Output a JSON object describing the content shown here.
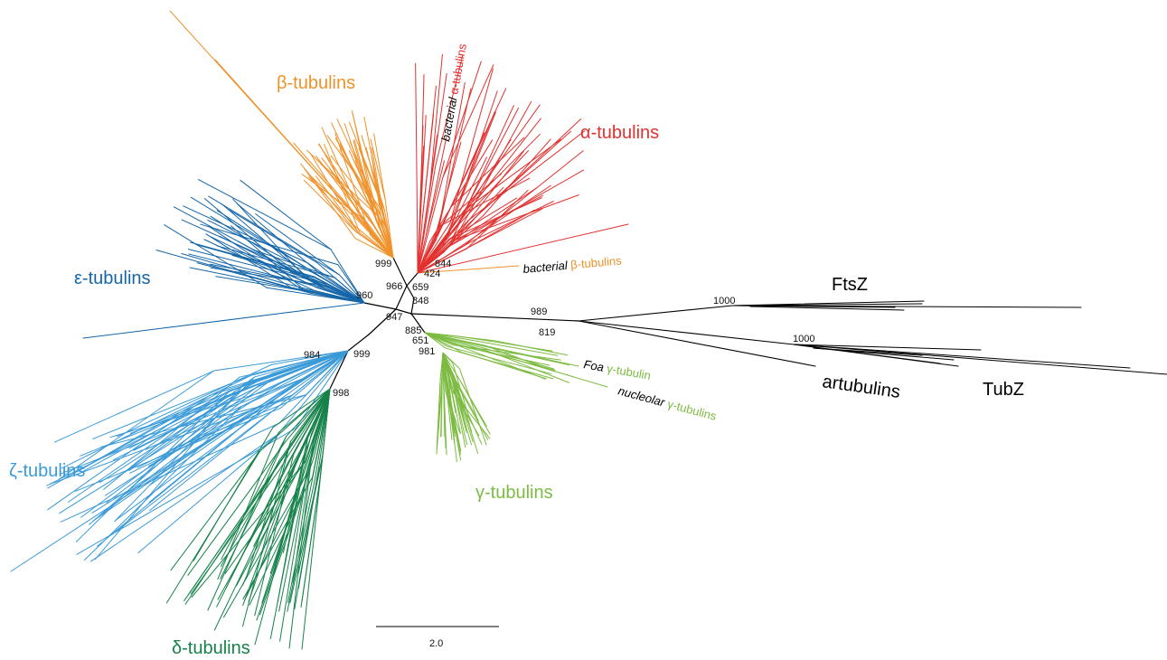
{
  "colors": {
    "alpha": "#e2312f",
    "beta": "#f0922b",
    "gamma": "#7dbb42",
    "delta": "#16824a",
    "epsilon": "#1566a8",
    "zeta": "#3a9ad8",
    "outgroup": "#000000"
  },
  "clades": {
    "beta": "β-tubulins",
    "alpha": "α-tubulins",
    "epsilon": "ε-tubulins",
    "zeta": "ζ-tubulins",
    "delta": "δ-tubulins",
    "gamma": "γ-tubulins",
    "ftsz": "FtsZ",
    "artubulins": "artubulins",
    "tubz": "TubZ"
  },
  "annotations": {
    "bacterial_alpha_italic": "bacterial",
    "bacterial_alpha_rest": " α-tubulins",
    "bacterial_beta_italic": "bacterial",
    "bacterial_beta_rest": " β-tubulins",
    "foa_italic": "Foa",
    "foa_rest": " γ-tubulin",
    "nucleolar_italic": "nucleolar",
    "nucleolar_rest": " γ-tubulins"
  },
  "bootstrap": {
    "b999a": "999",
    "b844": "844",
    "b424": "424",
    "b966": "966",
    "b659": "659",
    "b848": "848",
    "b960": "960",
    "b947": "947",
    "b885": "885",
    "b651": "651",
    "b981": "981",
    "b989": "989",
    "b819": "819",
    "b1000a": "1000",
    "b1000b": "1000",
    "b984": "984",
    "b999b": "999",
    "b998": "998"
  },
  "scale_bar": {
    "label": "2.0"
  }
}
